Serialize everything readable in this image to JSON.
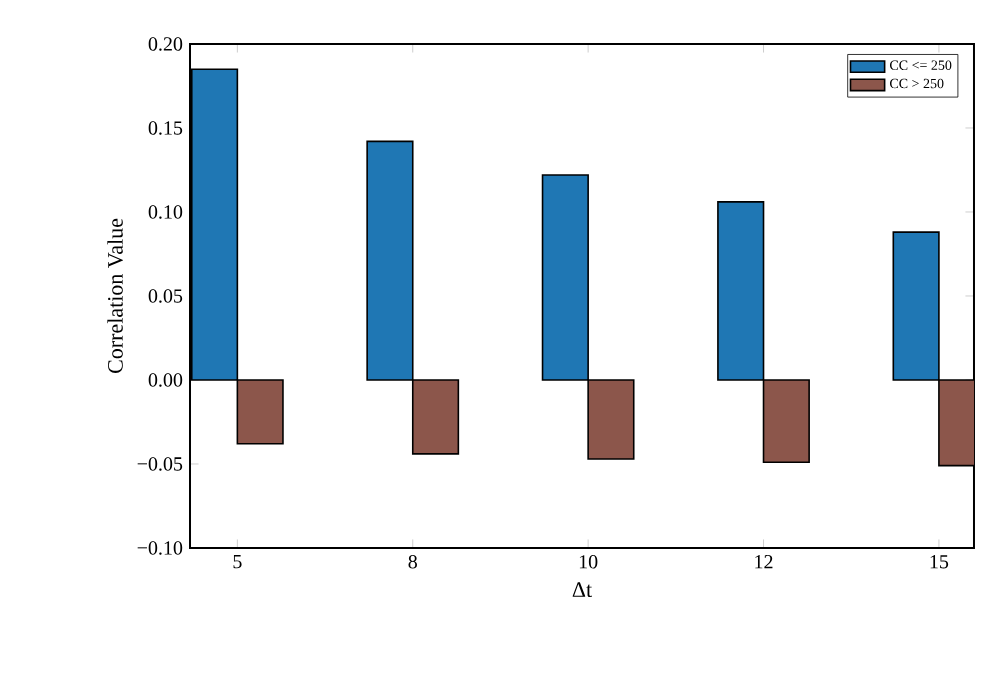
{
  "chart_data": {
    "type": "bar",
    "xlabel": "Δt",
    "ylabel": "Correlation Value",
    "categories": [
      "5",
      "8",
      "10",
      "12",
      "15"
    ],
    "series": [
      {
        "name": "CC <= 250",
        "color": "#1f77b4",
        "values": [
          0.185,
          0.142,
          0.122,
          0.106,
          0.088
        ]
      },
      {
        "name": "CC > 250",
        "color": "#8c564b",
        "values": [
          -0.038,
          -0.044,
          -0.047,
          -0.049,
          -0.051
        ]
      }
    ],
    "ylim": [
      -0.1,
      0.2
    ],
    "yticks": [
      {
        "value": -0.1,
        "label": "−0.10"
      },
      {
        "value": -0.05,
        "label": "−0.05"
      },
      {
        "value": 0,
        "label": "0.00"
      },
      {
        "value": 0.05,
        "label": "0.05"
      },
      {
        "value": 0.1,
        "label": "0.10"
      },
      {
        "value": 0.15,
        "label": "0.15"
      },
      {
        "value": 0.2,
        "label": "0.20"
      }
    ],
    "legend": "top right"
  }
}
